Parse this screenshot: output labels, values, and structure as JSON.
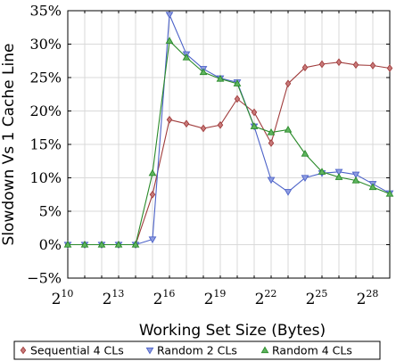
{
  "chart_data": {
    "type": "line",
    "xlabel": "Working Set Size (Bytes)",
    "ylabel": "Slowdown Vs 1 Cache Line",
    "x_scale": "log2",
    "x": [
      10,
      11,
      12,
      13,
      14,
      15,
      16,
      17,
      18,
      19,
      20,
      21,
      22,
      23,
      24,
      25,
      26,
      27,
      28,
      29
    ],
    "xlim": [
      10,
      29
    ],
    "xtick_base": "2",
    "xticks": [
      {
        "value": 10,
        "exp": "10"
      },
      {
        "value": 13,
        "exp": "13"
      },
      {
        "value": 16,
        "exp": "16"
      },
      {
        "value": 19,
        "exp": "19"
      },
      {
        "value": 22,
        "exp": "22"
      },
      {
        "value": 25,
        "exp": "25"
      },
      {
        "value": 28,
        "exp": "28"
      }
    ],
    "ylim": [
      -5,
      35
    ],
    "yticks": [
      {
        "value": -5,
        "label": "−5%"
      },
      {
        "value": 0,
        "label": "0%"
      },
      {
        "value": 5,
        "label": "5%"
      },
      {
        "value": 10,
        "label": "10%"
      },
      {
        "value": 15,
        "label": "15%"
      },
      {
        "value": 20,
        "label": "20%"
      },
      {
        "value": 25,
        "label": "25%"
      },
      {
        "value": 30,
        "label": "30%"
      },
      {
        "value": 35,
        "label": "35%"
      }
    ],
    "grid": true,
    "legend_position": "bottom",
    "series": [
      {
        "name": "Sequential 4 CLs",
        "color": "#a03c3c",
        "fill": "#c87a7a",
        "marker": "diamond",
        "values": [
          0,
          0,
          0,
          0,
          0,
          7.5,
          18.7,
          18.1,
          17.4,
          17.9,
          21.8,
          19.8,
          15.2,
          24.1,
          26.5,
          27.0,
          27.3,
          26.9,
          26.8,
          26.4
        ]
      },
      {
        "name": "Random 2 CLs",
        "color": "#4c62c8",
        "fill": "#8e9ce0",
        "marker": "triangle-down",
        "values": [
          0,
          0,
          0,
          0,
          0,
          0.8,
          34.4,
          28.5,
          26.3,
          24.9,
          24.3,
          17.7,
          9.7,
          7.9,
          10.0,
          10.7,
          10.9,
          10.5,
          9.1,
          7.7
        ]
      },
      {
        "name": "Random 4 CLs",
        "color": "#2a8a2a",
        "fill": "#5eb45e",
        "marker": "triangle-up",
        "values": [
          0,
          0,
          0,
          0,
          0,
          10.7,
          30.5,
          28.0,
          25.8,
          24.8,
          24.1,
          17.7,
          16.8,
          17.2,
          13.6,
          10.9,
          10.1,
          9.6,
          8.6,
          7.6
        ]
      }
    ]
  }
}
